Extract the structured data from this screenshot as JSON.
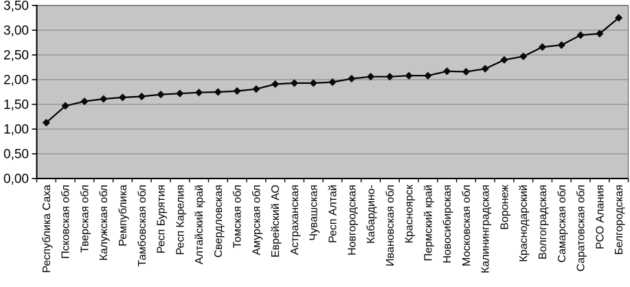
{
  "chart_data": {
    "type": "line",
    "title": "",
    "xlabel": "",
    "ylabel": "",
    "legend": "none",
    "grid": true,
    "marker": "diamond",
    "decimal_separator": ",",
    "ylim": [
      0,
      3.5
    ],
    "ytick_step": 0.5,
    "ytick_labels": [
      "0,00",
      "0,50",
      "1,00",
      "1,50",
      "2,00",
      "2,50",
      "3,00",
      "3,50"
    ],
    "categories": [
      "Республика Саха",
      "Псковская обл",
      "Тверская обл",
      "Калужская обл",
      "Ремпублика",
      "Тамбовская обл",
      "Респ Бурятия",
      "Респ Карелия",
      "Алтайский край",
      "Свердловская",
      "Томская обл",
      "Амурская обл",
      "Еврейский АО",
      "Астраханская",
      "Чувашская",
      "Респ Алтай",
      "Новгородская",
      "Кабардино-",
      "Ивановская обл",
      "Красноярск",
      "Пермский край",
      "Новосибирская",
      "Московская обл",
      "Калининградская",
      "Воронеж",
      "Краснодарский",
      "Волгоградская",
      "Самарская обл",
      "Саратовская обл",
      "РСО Алания",
      "Белгородская"
    ],
    "series": [
      {
        "name": "",
        "values": [
          1.13,
          1.47,
          1.56,
          1.61,
          1.64,
          1.66,
          1.7,
          1.72,
          1.74,
          1.75,
          1.77,
          1.81,
          1.91,
          1.93,
          1.93,
          1.95,
          2.02,
          2.06,
          2.06,
          2.08,
          2.08,
          2.17,
          2.16,
          2.22,
          2.4,
          2.47,
          2.66,
          2.7,
          2.9,
          2.93,
          3.25
        ]
      }
    ]
  },
  "style": {
    "page_bg": "#ffffff",
    "plot_bg": "#c5c5c5",
    "grid_color": "#808080",
    "plot_border_color": "#666666",
    "axis_color": "#000000",
    "line_color": "#000000",
    "marker_color": "#0a0a0a",
    "text_color": "#000000"
  }
}
